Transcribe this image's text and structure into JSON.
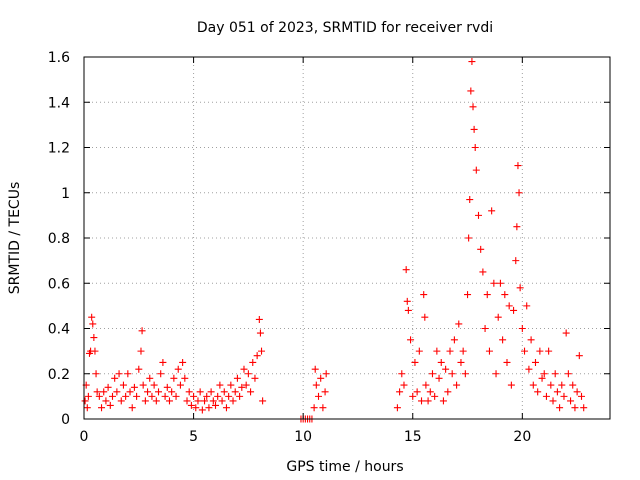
{
  "chart_data": {
    "type": "scatter",
    "title": "Day 051 of 2023, SRMTID for receiver rvdi",
    "xlabel": "GPS time / hours",
    "ylabel": "SRMTID / TECUs",
    "xlim": [
      0,
      24
    ],
    "ylim": [
      0,
      1.6
    ],
    "x_ticks": [
      0,
      5,
      10,
      15,
      20
    ],
    "x_tick_labels": [
      "0",
      "5",
      "10",
      "15",
      "20"
    ],
    "y_ticks": [
      0,
      0.2,
      0.4,
      0.6,
      0.8,
      1,
      1.2,
      1.4,
      1.6
    ],
    "y_tick_labels": [
      "0",
      "0.2",
      "0.4",
      "0.6",
      "0.8",
      "1",
      "1.2",
      "1.4",
      "1.6"
    ],
    "grid": true,
    "marker": "plus",
    "color": "#ff0000",
    "series": [
      {
        "name": "SRMTID",
        "points": [
          [
            0.05,
            0.08
          ],
          [
            0.1,
            0.15
          ],
          [
            0.15,
            0.05
          ],
          [
            0.2,
            0.1
          ],
          [
            0.25,
            0.29
          ],
          [
            0.3,
            0.3
          ],
          [
            0.35,
            0.45
          ],
          [
            0.4,
            0.42
          ],
          [
            0.45,
            0.36
          ],
          [
            0.5,
            0.3
          ],
          [
            0.55,
            0.2
          ],
          [
            0.6,
            0.12
          ],
          [
            0.7,
            0.1
          ],
          [
            0.8,
            0.05
          ],
          [
            0.9,
            0.12
          ],
          [
            1.0,
            0.08
          ],
          [
            1.1,
            0.14
          ],
          [
            1.2,
            0.06
          ],
          [
            1.3,
            0.1
          ],
          [
            1.4,
            0.18
          ],
          [
            1.5,
            0.12
          ],
          [
            1.6,
            0.2
          ],
          [
            1.7,
            0.08
          ],
          [
            1.8,
            0.15
          ],
          [
            1.9,
            0.1
          ],
          [
            2.0,
            0.2
          ],
          [
            2.1,
            0.12
          ],
          [
            2.2,
            0.05
          ],
          [
            2.3,
            0.14
          ],
          [
            2.4,
            0.1
          ],
          [
            2.5,
            0.22
          ],
          [
            2.6,
            0.3
          ],
          [
            2.65,
            0.39
          ],
          [
            2.7,
            0.15
          ],
          [
            2.8,
            0.08
          ],
          [
            2.9,
            0.12
          ],
          [
            3.0,
            0.18
          ],
          [
            3.1,
            0.1
          ],
          [
            3.2,
            0.15
          ],
          [
            3.3,
            0.08
          ],
          [
            3.4,
            0.12
          ],
          [
            3.5,
            0.2
          ],
          [
            3.6,
            0.25
          ],
          [
            3.7,
            0.1
          ],
          [
            3.8,
            0.14
          ],
          [
            3.9,
            0.08
          ],
          [
            4.0,
            0.12
          ],
          [
            4.1,
            0.18
          ],
          [
            4.2,
            0.1
          ],
          [
            4.3,
            0.22
          ],
          [
            4.4,
            0.15
          ],
          [
            4.5,
            0.25
          ],
          [
            4.6,
            0.18
          ],
          [
            4.7,
            0.08
          ],
          [
            4.8,
            0.12
          ],
          [
            4.9,
            0.06
          ],
          [
            5.0,
            0.1
          ],
          [
            5.1,
            0.05
          ],
          [
            5.2,
            0.08
          ],
          [
            5.3,
            0.12
          ],
          [
            5.4,
            0.04
          ],
          [
            5.5,
            0.08
          ],
          [
            5.6,
            0.1
          ],
          [
            5.7,
            0.05
          ],
          [
            5.8,
            0.12
          ],
          [
            5.9,
            0.08
          ],
          [
            6.0,
            0.06
          ],
          [
            6.1,
            0.1
          ],
          [
            6.2,
            0.15
          ],
          [
            6.3,
            0.08
          ],
          [
            6.4,
            0.12
          ],
          [
            6.5,
            0.05
          ],
          [
            6.6,
            0.1
          ],
          [
            6.7,
            0.15
          ],
          [
            6.8,
            0.08
          ],
          [
            6.9,
            0.12
          ],
          [
            7.0,
            0.18
          ],
          [
            7.1,
            0.1
          ],
          [
            7.2,
            0.14
          ],
          [
            7.3,
            0.22
          ],
          [
            7.4,
            0.15
          ],
          [
            7.5,
            0.2
          ],
          [
            7.6,
            0.12
          ],
          [
            7.7,
            0.25
          ],
          [
            7.8,
            0.18
          ],
          [
            7.9,
            0.28
          ],
          [
            8.0,
            0.44
          ],
          [
            8.05,
            0.38
          ],
          [
            8.1,
            0.3
          ],
          [
            8.15,
            0.08
          ],
          [
            9.9,
            0.0
          ],
          [
            10.0,
            0.0
          ],
          [
            10.1,
            0.0
          ],
          [
            10.2,
            0.0
          ],
          [
            10.3,
            0.0
          ],
          [
            10.4,
            0.0
          ],
          [
            10.5,
            0.05
          ],
          [
            10.55,
            0.22
          ],
          [
            10.6,
            0.15
          ],
          [
            10.7,
            0.1
          ],
          [
            10.8,
            0.18
          ],
          [
            10.9,
            0.05
          ],
          [
            11.0,
            0.12
          ],
          [
            11.05,
            0.2
          ],
          [
            14.3,
            0.05
          ],
          [
            14.4,
            0.12
          ],
          [
            14.5,
            0.2
          ],
          [
            14.6,
            0.15
          ],
          [
            14.7,
            0.66
          ],
          [
            14.75,
            0.52
          ],
          [
            14.8,
            0.48
          ],
          [
            14.9,
            0.35
          ],
          [
            15.0,
            0.1
          ],
          [
            15.1,
            0.25
          ],
          [
            15.2,
            0.12
          ],
          [
            15.3,
            0.3
          ],
          [
            15.4,
            0.08
          ],
          [
            15.5,
            0.55
          ],
          [
            15.55,
            0.45
          ],
          [
            15.6,
            0.15
          ],
          [
            15.7,
            0.08
          ],
          [
            15.8,
            0.12
          ],
          [
            15.9,
            0.2
          ],
          [
            16.0,
            0.1
          ],
          [
            16.1,
            0.3
          ],
          [
            16.2,
            0.18
          ],
          [
            16.3,
            0.25
          ],
          [
            16.4,
            0.08
          ],
          [
            16.5,
            0.22
          ],
          [
            16.6,
            0.12
          ],
          [
            16.7,
            0.3
          ],
          [
            16.8,
            0.2
          ],
          [
            16.9,
            0.35
          ],
          [
            17.0,
            0.15
          ],
          [
            17.1,
            0.42
          ],
          [
            17.2,
            0.25
          ],
          [
            17.3,
            0.3
          ],
          [
            17.4,
            0.2
          ],
          [
            17.5,
            0.55
          ],
          [
            17.55,
            0.8
          ],
          [
            17.6,
            0.97
          ],
          [
            17.65,
            1.45
          ],
          [
            17.7,
            1.58
          ],
          [
            17.75,
            1.38
          ],
          [
            17.8,
            1.28
          ],
          [
            17.85,
            1.2
          ],
          [
            17.9,
            1.1
          ],
          [
            18.0,
            0.9
          ],
          [
            18.1,
            0.75
          ],
          [
            18.2,
            0.65
          ],
          [
            18.3,
            0.4
          ],
          [
            18.4,
            0.55
          ],
          [
            18.5,
            0.3
          ],
          [
            18.6,
            0.92
          ],
          [
            18.7,
            0.6
          ],
          [
            18.8,
            0.2
          ],
          [
            18.9,
            0.45
          ],
          [
            19.0,
            0.6
          ],
          [
            19.1,
            0.35
          ],
          [
            19.2,
            0.55
          ],
          [
            19.3,
            0.25
          ],
          [
            19.4,
            0.5
          ],
          [
            19.5,
            0.15
          ],
          [
            19.6,
            0.48
          ],
          [
            19.7,
            0.7
          ],
          [
            19.75,
            0.85
          ],
          [
            19.8,
            1.12
          ],
          [
            19.85,
            1.0
          ],
          [
            19.9,
            0.58
          ],
          [
            20.0,
            0.4
          ],
          [
            20.1,
            0.3
          ],
          [
            20.2,
            0.5
          ],
          [
            20.3,
            0.22
          ],
          [
            20.4,
            0.35
          ],
          [
            20.5,
            0.15
          ],
          [
            20.6,
            0.25
          ],
          [
            20.7,
            0.12
          ],
          [
            20.8,
            0.3
          ],
          [
            20.9,
            0.18
          ],
          [
            21.0,
            0.2
          ],
          [
            21.1,
            0.1
          ],
          [
            21.2,
            0.3
          ],
          [
            21.3,
            0.15
          ],
          [
            21.4,
            0.08
          ],
          [
            21.5,
            0.2
          ],
          [
            21.6,
            0.12
          ],
          [
            21.7,
            0.05
          ],
          [
            21.8,
            0.15
          ],
          [
            21.9,
            0.1
          ],
          [
            22.0,
            0.38
          ],
          [
            22.1,
            0.2
          ],
          [
            22.2,
            0.08
          ],
          [
            22.3,
            0.15
          ],
          [
            22.4,
            0.05
          ],
          [
            22.5,
            0.12
          ],
          [
            22.6,
            0.28
          ],
          [
            22.7,
            0.1
          ],
          [
            22.8,
            0.05
          ]
        ]
      }
    ]
  }
}
